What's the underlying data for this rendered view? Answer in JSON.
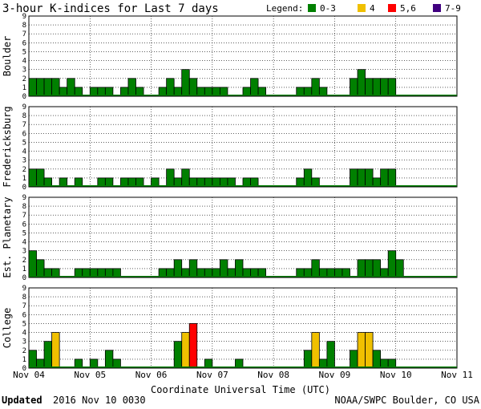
{
  "chart_data": {
    "type": "bar",
    "title": "3-hour K-indices for Last 7 days",
    "legend": {
      "label": "Legend:",
      "position": "top-right",
      "items": [
        {
          "label": "0-3",
          "color": "#008000"
        },
        {
          "label": "4",
          "color": "#f0c000"
        },
        {
          "label": "5,6",
          "color": "#ff0000"
        },
        {
          "label": "7-9",
          "color": "#400080"
        }
      ]
    },
    "xlabel": "Coordinate Universal Time (UTC)",
    "x_ticks": [
      "Nov 04",
      "Nov 05",
      "Nov 06",
      "Nov 07",
      "Nov 08",
      "Nov 09",
      "Nov 10",
      "Nov 11"
    ],
    "y_ticks": [
      "0",
      "1",
      "2",
      "3",
      "4",
      "5",
      "6",
      "7",
      "8",
      "9"
    ],
    "ylim": [
      0,
      9
    ],
    "interval_hours": 3,
    "grid": true,
    "panels": [
      {
        "name": "Boulder",
        "values": [
          2,
          2,
          2,
          2,
          1,
          2,
          1,
          0,
          1,
          1,
          1,
          0,
          1,
          2,
          1,
          0,
          0,
          1,
          2,
          1,
          3,
          2,
          1,
          1,
          1,
          1,
          0,
          0,
          1,
          2,
          1,
          0,
          0,
          0,
          0,
          1,
          1,
          2,
          1,
          0,
          0,
          0,
          2,
          3,
          2,
          2,
          2,
          2
        ]
      },
      {
        "name": "Fredericksburg",
        "values": [
          2,
          2,
          1,
          0,
          1,
          0,
          1,
          0,
          0,
          1,
          1,
          0,
          1,
          1,
          1,
          0,
          1,
          0,
          2,
          1,
          2,
          1,
          1,
          1,
          1,
          1,
          1,
          0,
          1,
          1,
          0,
          0,
          0,
          0,
          0,
          1,
          2,
          1,
          0,
          0,
          0,
          0,
          2,
          2,
          2,
          1,
          2,
          2
        ]
      },
      {
        "name": "Est. Planetary",
        "values": [
          3,
          2,
          1,
          1,
          0,
          0,
          1,
          1,
          1,
          1,
          1,
          1,
          0,
          0,
          0,
          0,
          0,
          1,
          1,
          2,
          1,
          2,
          1,
          1,
          1,
          2,
          1,
          2,
          1,
          1,
          1,
          0,
          0,
          0,
          0,
          1,
          1,
          2,
          1,
          1,
          1,
          1,
          0,
          2,
          2,
          2,
          1,
          3,
          2
        ]
      },
      {
        "name": "College",
        "values": [
          2,
          1,
          3,
          4,
          0,
          0,
          1,
          0,
          1,
          0,
          2,
          1,
          0,
          0,
          0,
          0,
          0,
          0,
          0,
          3,
          4,
          5,
          0,
          1,
          0,
          0,
          0,
          1,
          0,
          0,
          0,
          0,
          0,
          0,
          0,
          0,
          2,
          4,
          1,
          3,
          0,
          0,
          2,
          4,
          4,
          2,
          1,
          1
        ]
      }
    ]
  },
  "footer": {
    "updated_label": "Updated",
    "updated_value": "2016 Nov 10 0030",
    "credit": "NOAA/SWPC Boulder, CO USA"
  }
}
